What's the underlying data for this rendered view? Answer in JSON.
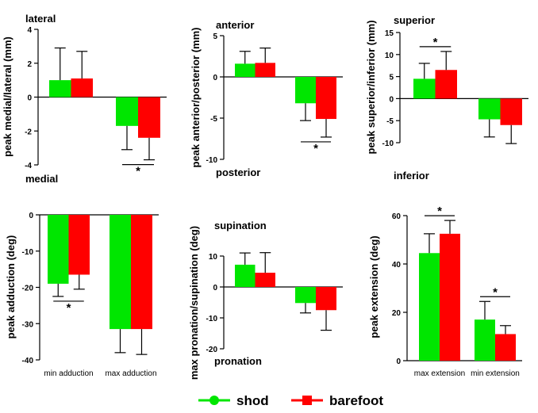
{
  "colors": {
    "shod": "#00e600",
    "barefoot": "#ff0000"
  },
  "legend": {
    "shod": "shod",
    "barefoot": "barefoot"
  },
  "chart_data": [
    {
      "type": "bar",
      "ylabel": "peak medial/lateral (mm)",
      "ylim": [
        -4,
        4
      ],
      "ticks": [
        4,
        2,
        0,
        -2,
        -4
      ],
      "annotations": {
        "top": "lateral",
        "bottom": "medial"
      },
      "categories": [
        "",
        ""
      ],
      "series": [
        {
          "name": "shod",
          "values": [
            1.0,
            -1.7
          ],
          "errors": [
            1.9,
            1.4
          ]
        },
        {
          "name": "barefoot",
          "values": [
            1.1,
            -2.4
          ],
          "errors": [
            1.6,
            1.3
          ]
        }
      ],
      "significance": [
        {
          "group": 1,
          "label": "*",
          "side": "below"
        }
      ]
    },
    {
      "type": "bar",
      "ylabel": "peak anterior/posterior (mm)",
      "ylim": [
        -10,
        5
      ],
      "ticks": [
        5,
        0,
        -5,
        -10
      ],
      "annotations": {
        "top": "anterior",
        "bottom": "posterior"
      },
      "categories": [
        "",
        ""
      ],
      "series": [
        {
          "name": "shod",
          "values": [
            1.6,
            -3.2
          ],
          "errors": [
            1.5,
            2.1
          ]
        },
        {
          "name": "barefoot",
          "values": [
            1.7,
            -5.1
          ],
          "errors": [
            1.8,
            2.2
          ]
        }
      ],
      "significance": [
        {
          "group": 1,
          "label": "*",
          "side": "below"
        }
      ]
    },
    {
      "type": "bar",
      "ylabel": "peak superior/inferior (mm)",
      "ylim": [
        -10,
        15
      ],
      "ticks": [
        15,
        10,
        5,
        0,
        -5,
        -10
      ],
      "annotations": {
        "top": "superior",
        "bottom": "inferior"
      },
      "categories": [
        "",
        ""
      ],
      "series": [
        {
          "name": "shod",
          "values": [
            4.5,
            -4.7
          ],
          "errors": [
            3.5,
            4.0
          ]
        },
        {
          "name": "barefoot",
          "values": [
            6.5,
            -6.0
          ],
          "errors": [
            4.2,
            4.2
          ]
        }
      ],
      "significance": [
        {
          "group": 0,
          "label": "*",
          "side": "above"
        }
      ]
    },
    {
      "type": "bar",
      "ylabel": "peak adduction (deg)",
      "ylim": [
        -40,
        0
      ],
      "ticks": [
        0,
        -10,
        -20,
        -30,
        -40
      ],
      "annotations": {
        "top": "",
        "bottom": ""
      },
      "categories": [
        "min adduction",
        "max adduction"
      ],
      "series": [
        {
          "name": "shod",
          "values": [
            -19,
            -31.5
          ],
          "errors": [
            3.5,
            6.5
          ]
        },
        {
          "name": "barefoot",
          "values": [
            -16.5,
            -31.5
          ],
          "errors": [
            4.0,
            7.0
          ]
        }
      ],
      "significance": [
        {
          "group": 0,
          "label": "*",
          "side": "below"
        }
      ]
    },
    {
      "type": "bar",
      "ylabel": "max pronation/supination (deg)",
      "ylim": [
        -20,
        10
      ],
      "ticks": [
        10,
        0,
        -10,
        -20
      ],
      "annotations": {
        "top": "supination",
        "bottom": "pronation"
      },
      "categories": [
        "",
        ""
      ],
      "series": [
        {
          "name": "shod",
          "values": [
            7.2,
            -5.2
          ],
          "errors": [
            3.8,
            3.2
          ]
        },
        {
          "name": "barefoot",
          "values": [
            4.6,
            -7.5
          ],
          "errors": [
            6.5,
            6.5
          ]
        }
      ],
      "significance": []
    },
    {
      "type": "bar",
      "ylabel": "peak extension (deg)",
      "ylim": [
        0,
        60
      ],
      "ticks": [
        60,
        40,
        20,
        0
      ],
      "annotations": {
        "top": "",
        "bottom": ""
      },
      "categories": [
        "max extension",
        "min extension"
      ],
      "series": [
        {
          "name": "shod",
          "values": [
            44.5,
            17
          ],
          "errors": [
            8.0,
            7.5
          ]
        },
        {
          "name": "barefoot",
          "values": [
            52.5,
            11
          ],
          "errors": [
            5.5,
            3.5
          ]
        }
      ],
      "significance": [
        {
          "group": 0,
          "label": "*",
          "side": "above"
        },
        {
          "group": 1,
          "label": "*",
          "side": "above"
        }
      ]
    }
  ]
}
